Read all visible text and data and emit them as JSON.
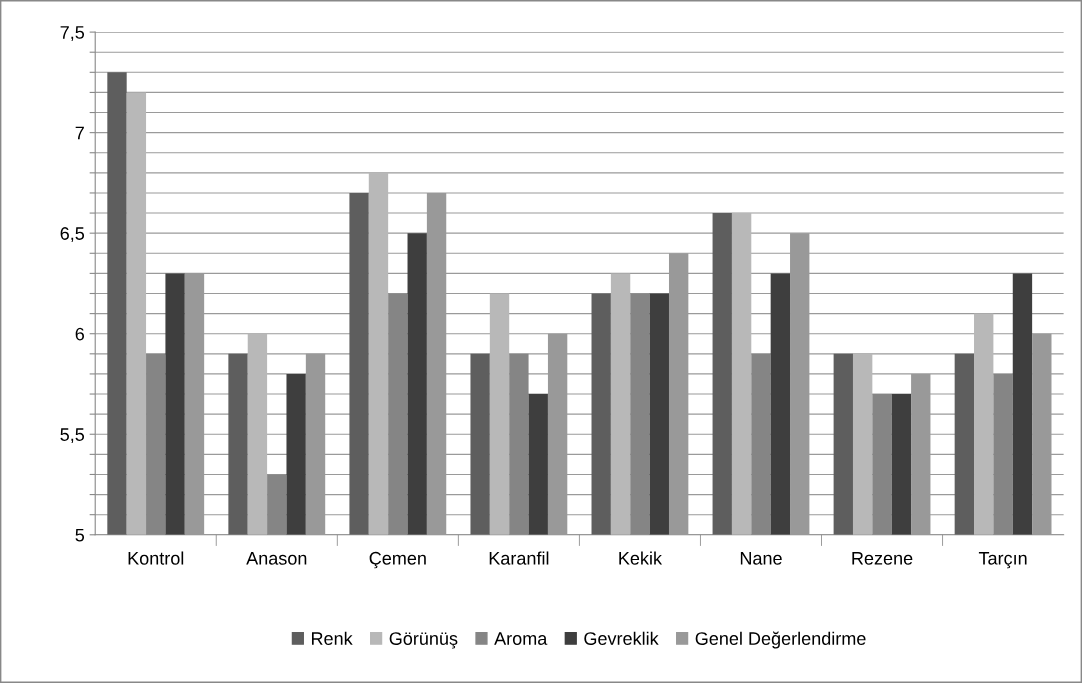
{
  "chart_data": {
    "type": "bar",
    "categories": [
      "Kontrol",
      "Anason",
      "Çemen",
      "Karanfil",
      "Kekik",
      "Nane",
      "Rezene",
      "Tarçın"
    ],
    "series": [
      {
        "name": "Renk",
        "color": "#5e5e5e",
        "values": [
          7.3,
          5.9,
          6.7,
          5.9,
          6.2,
          6.6,
          5.9,
          5.9
        ]
      },
      {
        "name": "Görünüş",
        "color": "#b8b8b8",
        "values": [
          7.2,
          6.0,
          6.8,
          6.2,
          6.3,
          6.6,
          5.9,
          6.1
        ]
      },
      {
        "name": "Aroma",
        "color": "#858585",
        "values": [
          5.9,
          5.3,
          6.2,
          5.9,
          6.2,
          5.9,
          5.7,
          5.8
        ]
      },
      {
        "name": "Gevreklik",
        "color": "#3e3e3e",
        "values": [
          6.3,
          5.8,
          6.5,
          5.7,
          6.2,
          6.3,
          5.7,
          6.3
        ]
      },
      {
        "name": "Genel Değerlendirme",
        "color": "#999999",
        "values": [
          6.3,
          5.9,
          6.7,
          6.0,
          6.4,
          6.5,
          5.8,
          6.0
        ]
      }
    ],
    "ylim": [
      5,
      7.5
    ],
    "yticks": [
      {
        "value": 5,
        "label": "5"
      },
      {
        "value": 5.1,
        "label": null
      },
      {
        "value": 5.2,
        "label": null
      },
      {
        "value": 5.3,
        "label": null
      },
      {
        "value": 5.4,
        "label": null
      },
      {
        "value": 5.5,
        "label": "5,5"
      },
      {
        "value": 5.6,
        "label": null
      },
      {
        "value": 5.7,
        "label": null
      },
      {
        "value": 5.8,
        "label": null
      },
      {
        "value": 5.9,
        "label": null
      },
      {
        "value": 6,
        "label": "6"
      },
      {
        "value": 6.1,
        "label": null
      },
      {
        "value": 6.2,
        "label": null
      },
      {
        "value": 6.3,
        "label": null
      },
      {
        "value": 6.4,
        "label": null
      },
      {
        "value": 6.5,
        "label": "6,5"
      },
      {
        "value": 6.6,
        "label": null
      },
      {
        "value": 6.7,
        "label": null
      },
      {
        "value": 6.8,
        "label": null
      },
      {
        "value": 6.9,
        "label": null
      },
      {
        "value": 7,
        "label": "7"
      },
      {
        "value": 7.1,
        "label": null
      },
      {
        "value": 7.2,
        "label": null
      },
      {
        "value": 7.3,
        "label": null
      },
      {
        "value": 7.4,
        "label": null
      },
      {
        "value": 7.5,
        "label": "7,5"
      }
    ],
    "grid": "y",
    "legend": "bottom"
  }
}
